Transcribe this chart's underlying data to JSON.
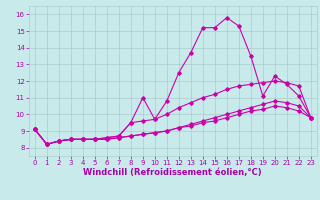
{
  "title": "",
  "xlabel": "Windchill (Refroidissement éolien,°C)",
  "ylabel": "",
  "bg_color": "#c8eaea",
  "line_color": "#cc00aa",
  "grid_color": "#aacccc",
  "text_color": "#aa00aa",
  "xlim": [
    -0.5,
    23.5
  ],
  "ylim": [
    7.5,
    16.5
  ],
  "xticks": [
    0,
    1,
    2,
    3,
    4,
    5,
    6,
    7,
    8,
    9,
    10,
    11,
    12,
    13,
    14,
    15,
    16,
    17,
    18,
    19,
    20,
    21,
    22,
    23
  ],
  "yticks": [
    8,
    9,
    10,
    11,
    12,
    13,
    14,
    15,
    16
  ],
  "line1_x": [
    0,
    1,
    2,
    3,
    4,
    5,
    6,
    7,
    8,
    9,
    10,
    11,
    12,
    13,
    14,
    15,
    16,
    17,
    18,
    19,
    20,
    21,
    22,
    23
  ],
  "line1_y": [
    9.1,
    8.2,
    8.4,
    8.5,
    8.5,
    8.5,
    8.6,
    8.7,
    9.5,
    11.0,
    9.7,
    10.8,
    12.5,
    13.7,
    15.2,
    15.2,
    15.8,
    15.3,
    13.5,
    11.1,
    12.3,
    11.8,
    11.1,
    9.8
  ],
  "line2_x": [
    0,
    1,
    2,
    3,
    4,
    5,
    6,
    7,
    8,
    9,
    10,
    11,
    12,
    13,
    14,
    15,
    16,
    17,
    18,
    19,
    20,
    21,
    22,
    23
  ],
  "line2_y": [
    9.1,
    8.2,
    8.4,
    8.5,
    8.5,
    8.5,
    8.6,
    8.7,
    9.5,
    9.6,
    9.7,
    10.0,
    10.4,
    10.7,
    11.0,
    11.2,
    11.5,
    11.7,
    11.8,
    11.9,
    12.0,
    11.9,
    11.7,
    9.8
  ],
  "line3_x": [
    0,
    1,
    2,
    3,
    4,
    5,
    6,
    7,
    8,
    9,
    10,
    11,
    12,
    13,
    14,
    15,
    16,
    17,
    18,
    19,
    20,
    21,
    22,
    23
  ],
  "line3_y": [
    9.1,
    8.2,
    8.4,
    8.5,
    8.5,
    8.5,
    8.5,
    8.6,
    8.7,
    8.8,
    8.9,
    9.0,
    9.2,
    9.4,
    9.6,
    9.8,
    10.0,
    10.2,
    10.4,
    10.6,
    10.8,
    10.7,
    10.5,
    9.8
  ],
  "line4_x": [
    0,
    1,
    2,
    3,
    4,
    5,
    6,
    7,
    8,
    9,
    10,
    11,
    12,
    13,
    14,
    15,
    16,
    17,
    18,
    19,
    20,
    21,
    22,
    23
  ],
  "line4_y": [
    9.1,
    8.2,
    8.4,
    8.5,
    8.5,
    8.5,
    8.5,
    8.6,
    8.7,
    8.8,
    8.9,
    9.0,
    9.2,
    9.3,
    9.5,
    9.6,
    9.8,
    10.0,
    10.2,
    10.3,
    10.5,
    10.4,
    10.2,
    9.8
  ],
  "marker": "D",
  "marker_size": 1.8,
  "linewidth": 0.8,
  "tick_fontsize": 5.0,
  "label_fontsize": 6.0
}
